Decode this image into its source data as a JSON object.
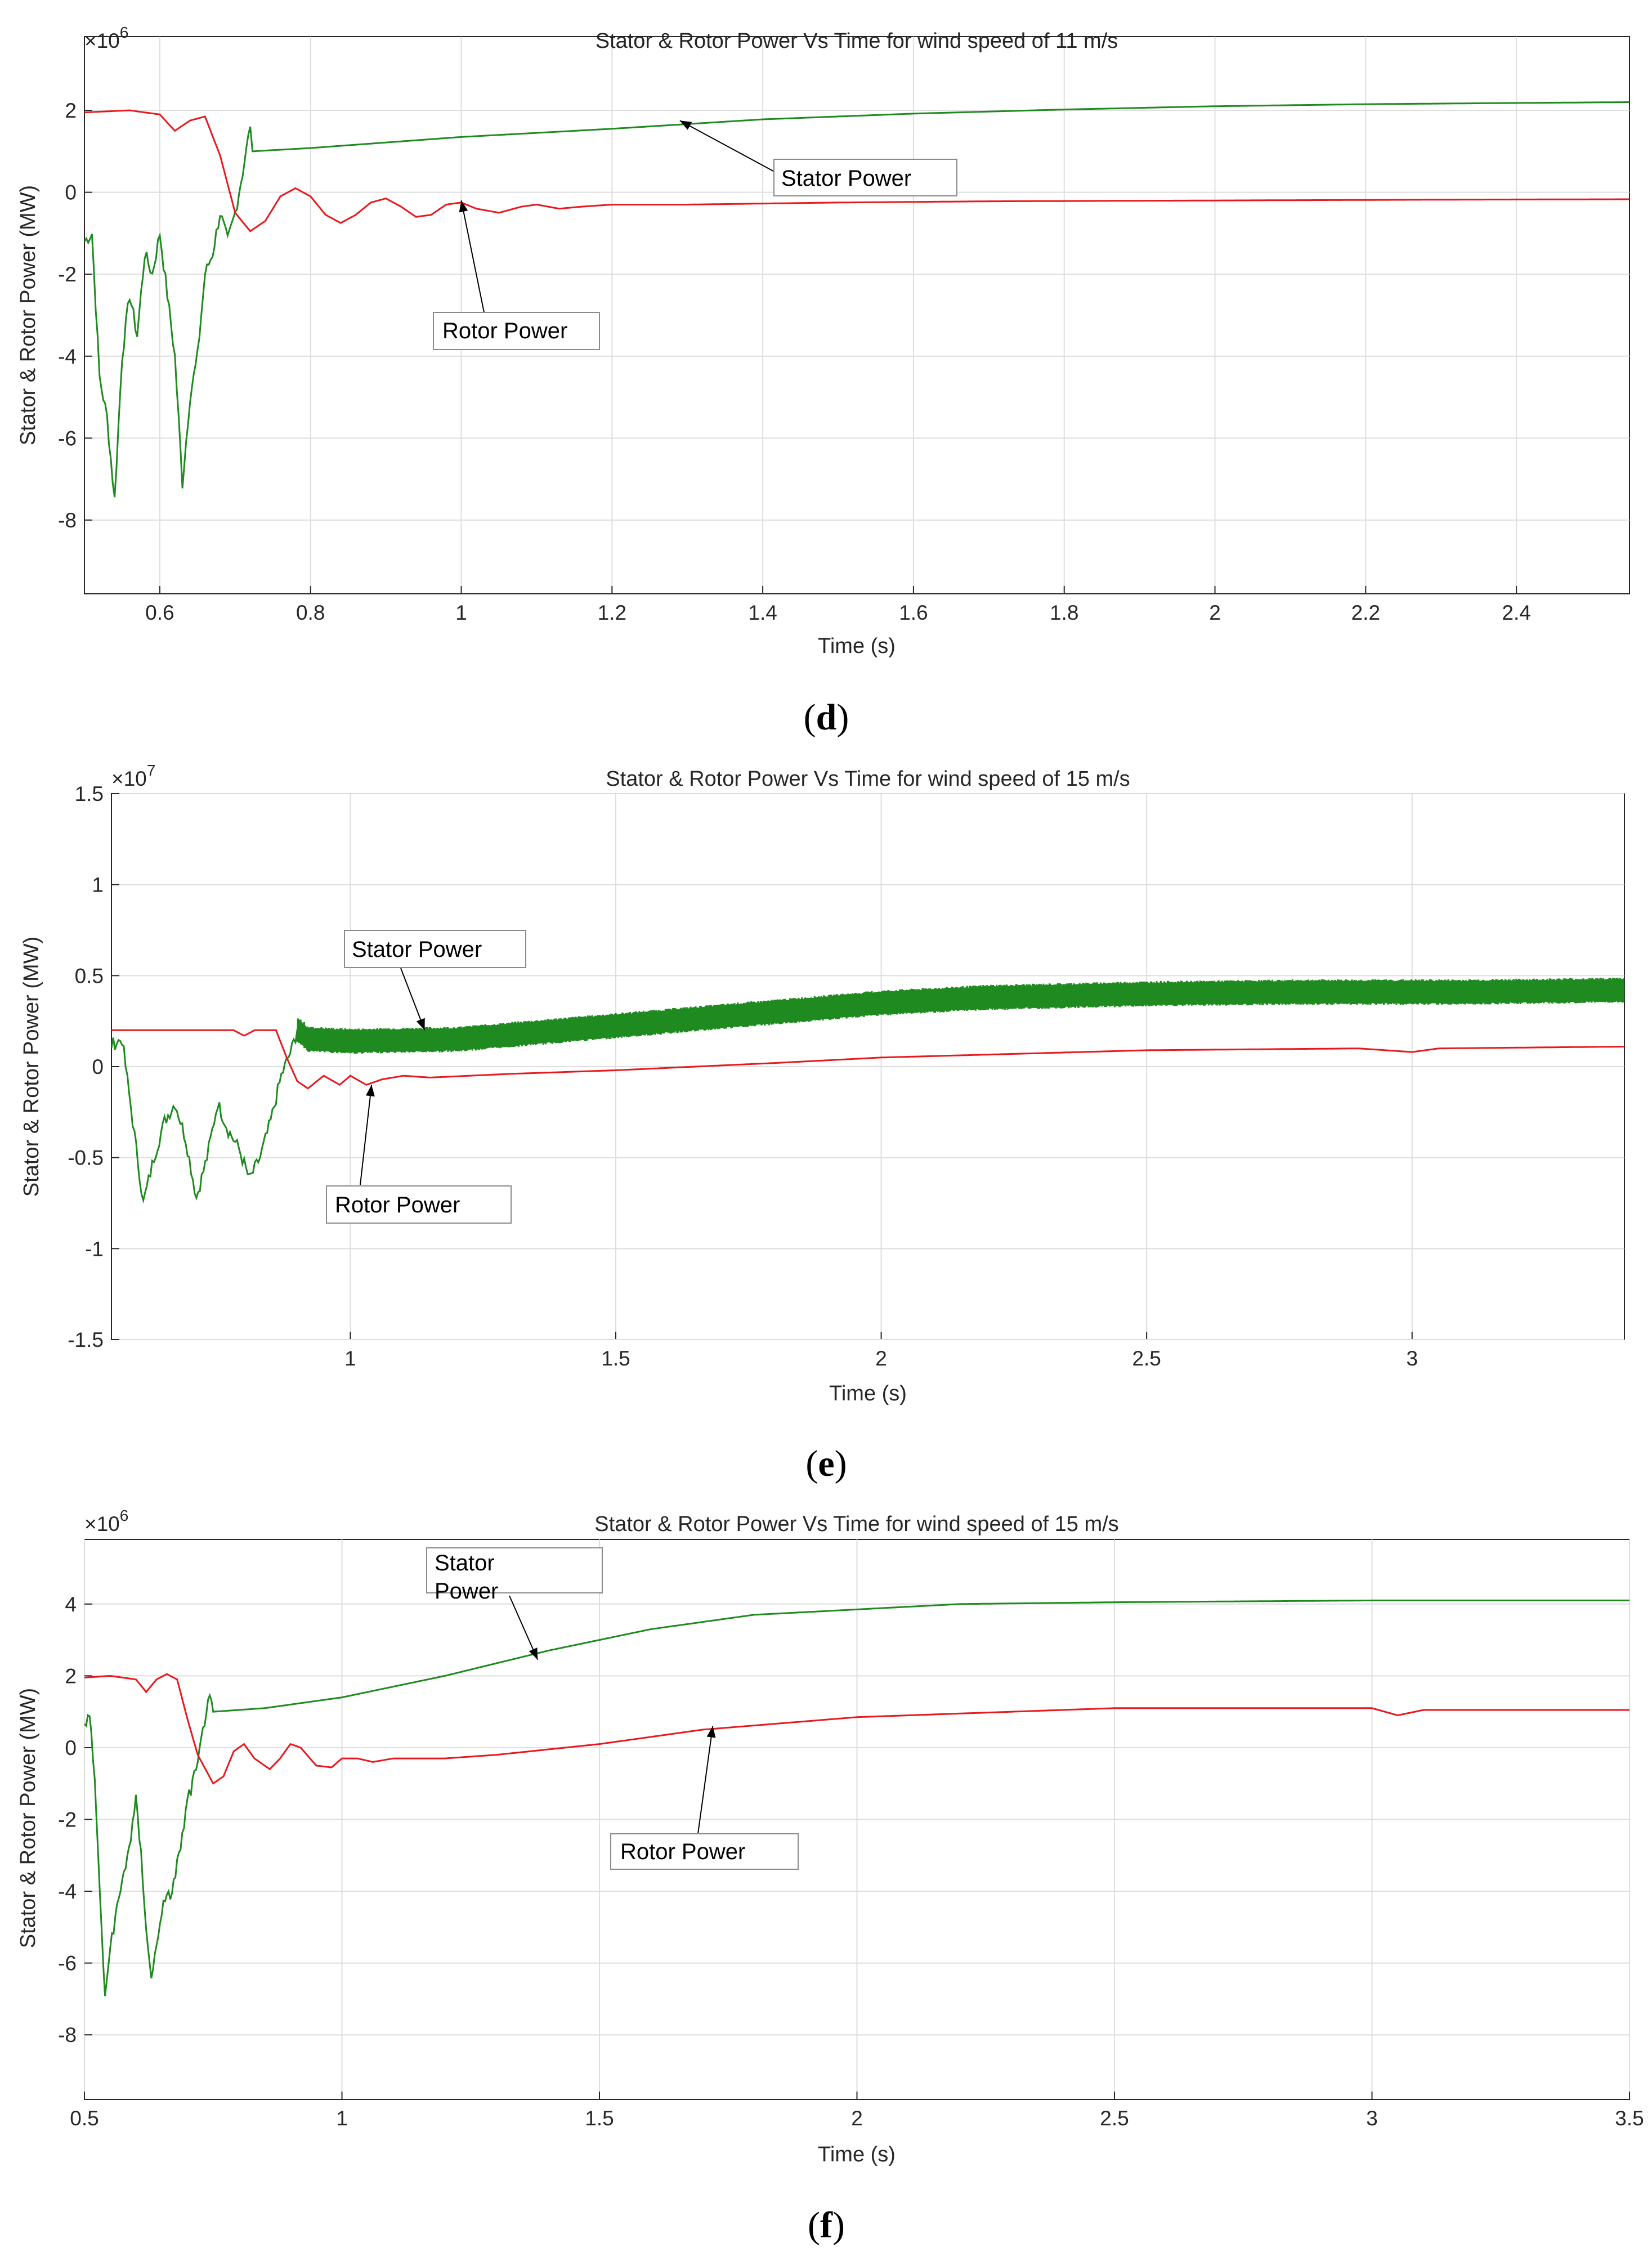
{
  "colors": {
    "stator": "#1f8a1f",
    "rotor": "#e8191e",
    "grid": "#dedede",
    "axes": "#262626",
    "background": "#ffffff"
  },
  "chart_data": [
    {
      "type": "line",
      "panel": "d",
      "caption_label": "d",
      "title": "Stator & Rotor Power Vs Time for wind speed of 11 m/s",
      "xlabel": "Time (s)",
      "ylabel": "Stator & Rotor Power (MW)",
      "y_multiplier": "×10",
      "y_exponent": "6",
      "xlim": [
        0.5,
        2.55
      ],
      "ylim": [
        -9.8,
        3.8
      ],
      "xticks": [
        0.6,
        0.8,
        1,
        1.2,
        1.4,
        1.6,
        1.8,
        2,
        2.2,
        2.4
      ],
      "xtick_labels": [
        "0.6",
        "0.8",
        "1",
        "1.2",
        "1.4",
        "1.6",
        "1.8",
        "2",
        "2.2",
        "2.4"
      ],
      "yticks": [
        -8,
        -6,
        -4,
        -2,
        0,
        2
      ],
      "ytick_labels": [
        "-8",
        "-6",
        "-4",
        "-2",
        "0",
        "2"
      ],
      "series": [
        {
          "name": "Stator Power",
          "color": "#1f8a1f",
          "noisy_until": 0.72,
          "points": [
            [
              0.5,
              -1.2
            ],
            [
              0.51,
              -1.0
            ],
            [
              0.52,
              -4.5
            ],
            [
              0.53,
              -5.5
            ],
            [
              0.54,
              -7.5
            ],
            [
              0.55,
              -4.0
            ],
            [
              0.56,
              -2.5
            ],
            [
              0.57,
              -3.5
            ],
            [
              0.58,
              -1.5
            ],
            [
              0.59,
              -2.0
            ],
            [
              0.6,
              -1.0
            ],
            [
              0.61,
              -2.5
            ],
            [
              0.62,
              -4.0
            ],
            [
              0.63,
              -7.1
            ],
            [
              0.64,
              -5.0
            ],
            [
              0.65,
              -4.0
            ],
            [
              0.66,
              -2.0
            ],
            [
              0.67,
              -1.5
            ],
            [
              0.68,
              -0.5
            ],
            [
              0.69,
              -1.2
            ],
            [
              0.7,
              -0.5
            ],
            [
              0.71,
              0.5
            ],
            [
              0.72,
              1.6
            ],
            [
              0.723,
              1.0
            ],
            [
              0.8,
              1.08
            ],
            [
              1.0,
              1.35
            ],
            [
              1.2,
              1.55
            ],
            [
              1.4,
              1.78
            ],
            [
              1.6,
              1.92
            ],
            [
              1.8,
              2.02
            ],
            [
              2.0,
              2.1
            ],
            [
              2.2,
              2.15
            ],
            [
              2.4,
              2.18
            ],
            [
              2.55,
              2.2
            ]
          ]
        },
        {
          "name": "Rotor Power",
          "color": "#e8191e",
          "points": [
            [
              0.5,
              1.95
            ],
            [
              0.56,
              2.0
            ],
            [
              0.6,
              1.9
            ],
            [
              0.62,
              1.5
            ],
            [
              0.64,
              1.75
            ],
            [
              0.66,
              1.85
            ],
            [
              0.68,
              0.9
            ],
            [
              0.7,
              -0.5
            ],
            [
              0.72,
              -0.95
            ],
            [
              0.74,
              -0.7
            ],
            [
              0.76,
              -0.1
            ],
            [
              0.78,
              0.1
            ],
            [
              0.8,
              -0.1
            ],
            [
              0.82,
              -0.55
            ],
            [
              0.84,
              -0.75
            ],
            [
              0.86,
              -0.55
            ],
            [
              0.88,
              -0.25
            ],
            [
              0.9,
              -0.15
            ],
            [
              0.92,
              -0.35
            ],
            [
              0.94,
              -0.6
            ],
            [
              0.96,
              -0.55
            ],
            [
              0.98,
              -0.3
            ],
            [
              1.0,
              -0.25
            ],
            [
              1.02,
              -0.4
            ],
            [
              1.05,
              -0.5
            ],
            [
              1.08,
              -0.35
            ],
            [
              1.1,
              -0.3
            ],
            [
              1.13,
              -0.4
            ],
            [
              1.16,
              -0.35
            ],
            [
              1.2,
              -0.3
            ],
            [
              1.3,
              -0.3
            ],
            [
              1.5,
              -0.25
            ],
            [
              1.7,
              -0.22
            ],
            [
              2.0,
              -0.2
            ],
            [
              2.3,
              -0.18
            ],
            [
              2.55,
              -0.17
            ]
          ]
        }
      ],
      "annotations": [
        {
          "text": "Stator Power",
          "target": [
            1.29,
            1.75
          ]
        },
        {
          "text": "Rotor Power",
          "target": [
            1.0,
            -0.2
          ]
        }
      ]
    },
    {
      "type": "line",
      "panel": "e",
      "caption_label": "e",
      "title": "Stator & Rotor Power Vs Time for wind speed of 15 m/s",
      "xlabel": "Time (s)",
      "ylabel": "Stator & Rotor Power (MW)",
      "y_multiplier": "×10",
      "y_exponent": "7",
      "xlim": [
        0.55,
        3.4
      ],
      "ylim": [
        -1.5,
        1.5
      ],
      "xticks": [
        1,
        1.5,
        2,
        2.5,
        3
      ],
      "xtick_labels": [
        "1",
        "1.5",
        "2",
        "2.5",
        "3"
      ],
      "yticks": [
        -1.5,
        -1,
        -0.5,
        0,
        0.5,
        1,
        1.5
      ],
      "ytick_labels": [
        "-1.5",
        "-1",
        "-0.5",
        "0",
        "0.5",
        "1",
        "1.5"
      ],
      "series": [
        {
          "name": "Stator Power",
          "color": "#1f8a1f",
          "noisy_until": 0.9,
          "band_after": [
            0.9,
            0.07
          ],
          "points": [
            [
              0.55,
              0.12
            ],
            [
              0.57,
              0.15
            ],
            [
              0.59,
              -0.3
            ],
            [
              0.61,
              -0.75
            ],
            [
              0.63,
              -0.5
            ],
            [
              0.65,
              -0.3
            ],
            [
              0.67,
              -0.2
            ],
            [
              0.69,
              -0.4
            ],
            [
              0.71,
              -0.72
            ],
            [
              0.73,
              -0.5
            ],
            [
              0.75,
              -0.2
            ],
            [
              0.77,
              -0.35
            ],
            [
              0.79,
              -0.45
            ],
            [
              0.81,
              -0.62
            ],
            [
              0.83,
              -0.5
            ],
            [
              0.85,
              -0.3
            ],
            [
              0.87,
              -0.05
            ],
            [
              0.89,
              0.1
            ],
            [
              0.9,
              0.2
            ],
            [
              0.92,
              0.15
            ],
            [
              1.0,
              0.14
            ],
            [
              1.2,
              0.15
            ],
            [
              1.4,
              0.2
            ],
            [
              1.6,
              0.25
            ],
            [
              1.8,
              0.3
            ],
            [
              2.0,
              0.35
            ],
            [
              2.2,
              0.38
            ],
            [
              2.5,
              0.4
            ],
            [
              2.8,
              0.41
            ],
            [
              3.1,
              0.41
            ],
            [
              3.4,
              0.42
            ]
          ]
        },
        {
          "name": "Rotor Power",
          "color": "#e8191e",
          "points": [
            [
              0.55,
              0.2
            ],
            [
              0.7,
              0.2
            ],
            [
              0.78,
              0.2
            ],
            [
              0.8,
              0.17
            ],
            [
              0.82,
              0.2
            ],
            [
              0.86,
              0.2
            ],
            [
              0.88,
              0.05
            ],
            [
              0.9,
              -0.08
            ],
            [
              0.92,
              -0.12
            ],
            [
              0.95,
              -0.05
            ],
            [
              0.98,
              -0.1
            ],
            [
              1.0,
              -0.05
            ],
            [
              1.03,
              -0.1
            ],
            [
              1.06,
              -0.07
            ],
            [
              1.1,
              -0.05
            ],
            [
              1.15,
              -0.06
            ],
            [
              1.3,
              -0.04
            ],
            [
              1.5,
              -0.02
            ],
            [
              1.8,
              0.02
            ],
            [
              2.0,
              0.05
            ],
            [
              2.5,
              0.09
            ],
            [
              2.9,
              0.1
            ],
            [
              3.0,
              0.08
            ],
            [
              3.05,
              0.1
            ],
            [
              3.4,
              0.11
            ]
          ]
        }
      ],
      "annotations": [
        {
          "text": "Stator Power",
          "target": [
            1.14,
            0.2
          ]
        },
        {
          "text": "Rotor Power",
          "target": [
            1.04,
            -0.1
          ]
        }
      ]
    },
    {
      "type": "line",
      "panel": "f",
      "caption_label": "f",
      "title": "Stator & Rotor Power Vs Time for wind speed of 15 m/s",
      "xlabel": "Time (s)",
      "ylabel": "Stator & Rotor Power (MW)",
      "y_multiplier": "×10",
      "y_exponent": "6",
      "xlim": [
        0.5,
        3.5
      ],
      "ylim": [
        -9.8,
        5.8
      ],
      "xticks": [
        0.5,
        1,
        1.5,
        2,
        2.5,
        3,
        3.5
      ],
      "xtick_labels": [
        "0.5",
        "1",
        "1.5",
        "2",
        "2.5",
        "3",
        "3.5"
      ],
      "yticks": [
        -8,
        -6,
        -4,
        -2,
        0,
        2,
        4
      ],
      "ytick_labels": [
        "-8",
        "-6",
        "-4",
        "-2",
        "0",
        "2",
        "4"
      ],
      "series": [
        {
          "name": "Stator Power",
          "color": "#1f8a1f",
          "noisy_until": 0.75,
          "points": [
            [
              0.5,
              0.5
            ],
            [
              0.51,
              1.0
            ],
            [
              0.52,
              -1.0
            ],
            [
              0.53,
              -4.0
            ],
            [
              0.54,
              -7.1
            ],
            [
              0.55,
              -5.5
            ],
            [
              0.57,
              -4.0
            ],
            [
              0.59,
              -2.5
            ],
            [
              0.6,
              -1.5
            ],
            [
              0.61,
              -3.0
            ],
            [
              0.62,
              -5.0
            ],
            [
              0.63,
              -6.5
            ],
            [
              0.65,
              -4.5
            ],
            [
              0.67,
              -4.0
            ],
            [
              0.69,
              -2.5
            ],
            [
              0.7,
              -1.5
            ],
            [
              0.72,
              -0.5
            ],
            [
              0.74,
              1.4
            ],
            [
              0.75,
              1.0
            ],
            [
              0.85,
              1.1
            ],
            [
              1.0,
              1.4
            ],
            [
              1.2,
              2.0
            ],
            [
              1.4,
              2.7
            ],
            [
              1.6,
              3.3
            ],
            [
              1.8,
              3.7
            ],
            [
              2.0,
              3.85
            ],
            [
              2.2,
              4.0
            ],
            [
              2.5,
              4.05
            ],
            [
              3.0,
              4.1
            ],
            [
              3.5,
              4.1
            ]
          ]
        },
        {
          "name": "Rotor Power",
          "color": "#e8191e",
          "points": [
            [
              0.5,
              1.95
            ],
            [
              0.55,
              2.0
            ],
            [
              0.6,
              1.9
            ],
            [
              0.62,
              1.55
            ],
            [
              0.64,
              1.9
            ],
            [
              0.66,
              2.05
            ],
            [
              0.68,
              1.9
            ],
            [
              0.7,
              0.8
            ],
            [
              0.72,
              -0.2
            ],
            [
              0.75,
              -1.0
            ],
            [
              0.77,
              -0.8
            ],
            [
              0.79,
              -0.1
            ],
            [
              0.81,
              0.1
            ],
            [
              0.83,
              -0.3
            ],
            [
              0.86,
              -0.6
            ],
            [
              0.88,
              -0.3
            ],
            [
              0.9,
              0.1
            ],
            [
              0.92,
              0.0
            ],
            [
              0.95,
              -0.5
            ],
            [
              0.98,
              -0.55
            ],
            [
              1.0,
              -0.3
            ],
            [
              1.03,
              -0.3
            ],
            [
              1.06,
              -0.4
            ],
            [
              1.1,
              -0.3
            ],
            [
              1.2,
              -0.3
            ],
            [
              1.3,
              -0.2
            ],
            [
              1.5,
              0.1
            ],
            [
              1.7,
              0.5
            ],
            [
              2.0,
              0.85
            ],
            [
              2.5,
              1.1
            ],
            [
              3.0,
              1.1
            ],
            [
              3.05,
              0.9
            ],
            [
              3.1,
              1.05
            ],
            [
              3.5,
              1.05
            ]
          ]
        }
      ],
      "annotations": [
        {
          "text": "Stator",
          "text2": "Power",
          "target": [
            1.38,
            2.45
          ]
        },
        {
          "text": "Rotor Power",
          "target": [
            1.72,
            0.6
          ]
        }
      ]
    }
  ]
}
